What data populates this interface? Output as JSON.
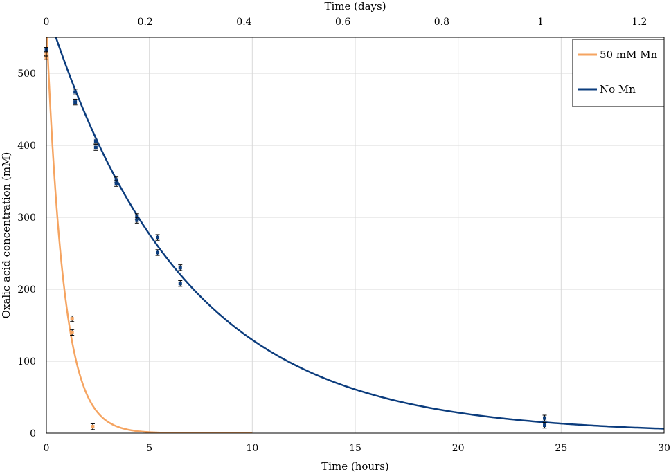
{
  "chart_data": {
    "type": "scatter",
    "title": "",
    "xlabel": "Time (hours)",
    "ylabel": "Oxalic acid concentration (mM)",
    "x2label": "Time (days)",
    "xlim": [
      0,
      30
    ],
    "ylim": [
      0,
      550
    ],
    "x2lim": [
      0,
      1.25
    ],
    "xticks": [
      0,
      5,
      10,
      15,
      20,
      25,
      30
    ],
    "x2ticks": [
      0,
      0.2,
      0.4,
      0.6,
      0.8,
      1,
      1.2
    ],
    "yticks": [
      0,
      100,
      200,
      300,
      400,
      500
    ],
    "grid": true,
    "legend_position": "top-right",
    "series": [
      {
        "name": "50 mM Mn",
        "color": "#f5a461",
        "points": [
          {
            "x": 0.0,
            "y": 522,
            "err": 3
          },
          {
            "x": 0.0,
            "y": 527,
            "err": 3
          },
          {
            "x": 1.25,
            "y": 159,
            "err": 4
          },
          {
            "x": 1.25,
            "y": 140,
            "err": 4
          },
          {
            "x": 2.25,
            "y": 9,
            "err": 4
          }
        ],
        "fit": {
          "model": "exponential",
          "c0": 570,
          "k": 1.2,
          "x_end": 10
        }
      },
      {
        "name": "No Mn",
        "color": "#0b3c7d",
        "points": [
          {
            "x": 0.0,
            "y": 533,
            "err": 3
          },
          {
            "x": 1.4,
            "y": 474,
            "err": 4
          },
          {
            "x": 1.4,
            "y": 460,
            "err": 4
          },
          {
            "x": 2.4,
            "y": 406,
            "err": 4
          },
          {
            "x": 2.4,
            "y": 397,
            "err": 4
          },
          {
            "x": 3.4,
            "y": 352,
            "err": 4
          },
          {
            "x": 3.4,
            "y": 347,
            "err": 4
          },
          {
            "x": 4.4,
            "y": 301,
            "err": 4
          },
          {
            "x": 4.4,
            "y": 296,
            "err": 4
          },
          {
            "x": 5.4,
            "y": 272,
            "err": 4
          },
          {
            "x": 5.4,
            "y": 251,
            "err": 4
          },
          {
            "x": 6.5,
            "y": 230,
            "err": 4
          },
          {
            "x": 6.5,
            "y": 208,
            "err": 4
          },
          {
            "x": 24.2,
            "y": 21,
            "err": 4
          },
          {
            "x": 24.2,
            "y": 11,
            "err": 4
          }
        ],
        "fit": {
          "model": "exponential",
          "c0": 590,
          "k": 0.1515,
          "x_end": 30
        }
      }
    ]
  }
}
